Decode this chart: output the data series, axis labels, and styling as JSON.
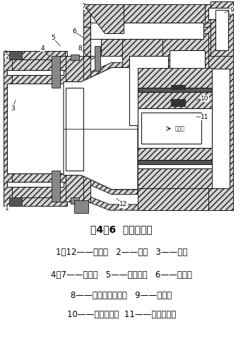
{
  "title": "图4－6  旁侧式机头",
  "legend_lines": [
    "1，12——测温孔   2——口模   3——芯模",
    "4，7——电热圈   5——调节螺钉   6——机头体",
    "8——熔融塑料测温孔   9——连接器",
    "10——高温计测孔  11——芯模加热器"
  ],
  "bg_color": "#ffffff",
  "line_color": "#1a1a1a",
  "air_label": "←空气入",
  "title_fontsize": 10,
  "legend_fontsize": 8.5,
  "fig_width": 3.44,
  "fig_height": 4.79,
  "dpi": 100
}
